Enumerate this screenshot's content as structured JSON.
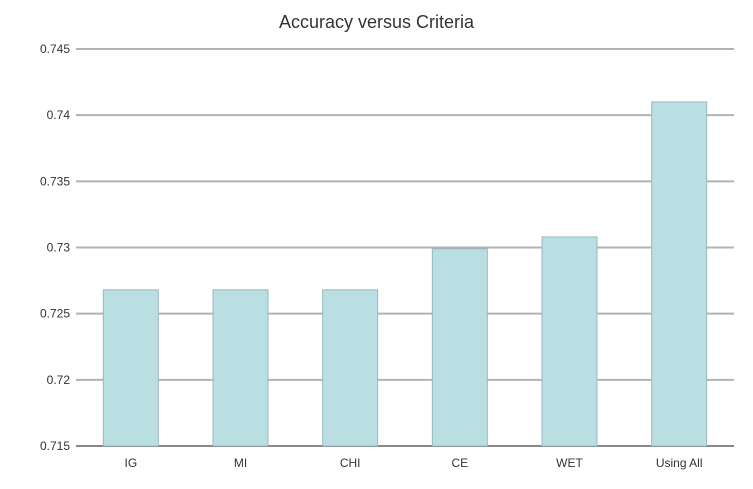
{
  "chart_data": {
    "type": "bar",
    "title": "Accuracy versus Criteria",
    "xlabel": "",
    "ylabel": "",
    "categories": [
      "IG",
      "MI",
      "CHI",
      "CE",
      "WET",
      "Using All"
    ],
    "values": [
      0.7268,
      0.7268,
      0.7268,
      0.7299,
      0.7308,
      0.741
    ],
    "ylim": [
      0.715,
      0.745
    ],
    "yticks": [
      0.715,
      0.72,
      0.725,
      0.73,
      0.735,
      0.74,
      0.745
    ],
    "ytick_labels": [
      "0.715",
      "0.72",
      "0.725",
      "0.73",
      "0.735",
      "0.74",
      "0.745"
    ],
    "grid": true,
    "colors": {
      "bar_fill": "#b9dfe3",
      "bar_stroke": "#9ab8bd",
      "grid": "#b3b3b3",
      "axis": "#888888"
    }
  }
}
